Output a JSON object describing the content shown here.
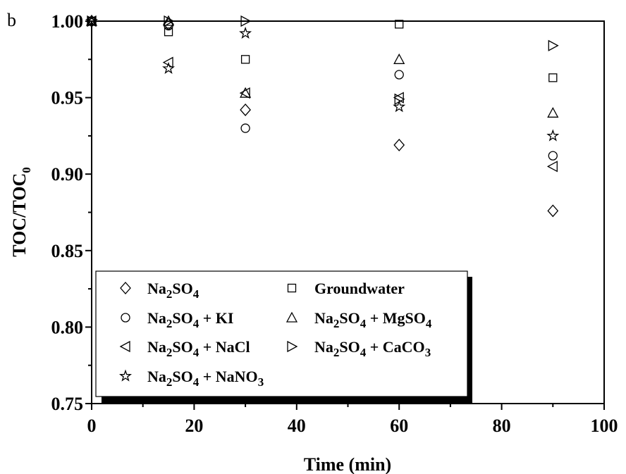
{
  "panel_label": "b",
  "chart_data": {
    "type": "scatter",
    "title": "",
    "xlabel": "Time (min)",
    "ylabel_main": "TOC/TOC",
    "ylabel_sub": "0",
    "xlim": [
      0,
      100
    ],
    "ylim": [
      0.75,
      1.0
    ],
    "xticks": [
      0,
      20,
      40,
      60,
      80,
      100
    ],
    "xtick_labels": [
      "0",
      "20",
      "40",
      "60",
      "80",
      "100"
    ],
    "yticks": [
      0.75,
      0.8,
      0.85,
      0.9,
      0.95,
      1.0
    ],
    "ytick_labels": [
      "0.75",
      "0.80",
      "0.85",
      "0.90",
      "0.95",
      "1.00"
    ],
    "grid": false,
    "legend_position": "lower-left",
    "series": [
      {
        "name": "Na2SO4",
        "legend_parts": [
          [
            "Na",
            ""
          ],
          [
            "2",
            "sub"
          ],
          [
            "SO",
            ""
          ],
          [
            "4",
            "sub"
          ]
        ],
        "marker": "diamond",
        "x": [
          0,
          15,
          30,
          60,
          90
        ],
        "y": [
          1.0,
          0.998,
          0.942,
          0.919,
          0.876
        ]
      },
      {
        "name": "Groundwater",
        "legend_parts": [
          [
            "Groundwater",
            ""
          ]
        ],
        "marker": "square",
        "x": [
          0,
          15,
          30,
          60,
          90
        ],
        "y": [
          1.0,
          0.993,
          0.975,
          0.998,
          0.963
        ]
      },
      {
        "name": "Na2SO4 + KI",
        "legend_parts": [
          [
            "Na",
            ""
          ],
          [
            "2",
            "sub"
          ],
          [
            "SO",
            ""
          ],
          [
            "4",
            "sub"
          ],
          [
            " + KI",
            ""
          ]
        ],
        "marker": "circle",
        "x": [
          0,
          15,
          30,
          60,
          90
        ],
        "y": [
          1.0,
          0.997,
          0.93,
          0.965,
          0.912
        ]
      },
      {
        "name": "Na2SO4 + MgSO4",
        "legend_parts": [
          [
            "Na",
            ""
          ],
          [
            "2",
            "sub"
          ],
          [
            "SO",
            ""
          ],
          [
            "4",
            "sub"
          ],
          [
            " + MgSO",
            ""
          ],
          [
            "4",
            "sub"
          ]
        ],
        "marker": "triangle-up",
        "x": [
          0,
          15,
          30,
          60,
          90
        ],
        "y": [
          1.0,
          1.0,
          0.953,
          0.975,
          0.94
        ]
      },
      {
        "name": "Na2SO4 + NaCl",
        "legend_parts": [
          [
            "Na",
            ""
          ],
          [
            "2",
            "sub"
          ],
          [
            "SO",
            ""
          ],
          [
            "4",
            "sub"
          ],
          [
            " + NaCl",
            ""
          ]
        ],
        "marker": "triangle-left",
        "x": [
          0,
          15,
          30,
          60,
          90
        ],
        "y": [
          1.0,
          0.973,
          0.953,
          0.95,
          0.905
        ]
      },
      {
        "name": "Na2SO4 + CaCO3",
        "legend_parts": [
          [
            "Na",
            ""
          ],
          [
            "2",
            "sub"
          ],
          [
            "SO",
            ""
          ],
          [
            "4",
            "sub"
          ],
          [
            " + CaCO",
            ""
          ],
          [
            "3",
            "sub"
          ]
        ],
        "marker": "triangle-right",
        "x": [
          0,
          15,
          30,
          60,
          90
        ],
        "y": [
          1.0,
          1.0,
          1.0,
          0.949,
          0.984
        ]
      },
      {
        "name": "Na2SO4 + NaNO3",
        "legend_parts": [
          [
            "Na",
            ""
          ],
          [
            "2",
            "sub"
          ],
          [
            "SO",
            ""
          ],
          [
            "4",
            "sub"
          ],
          [
            " + NaNO",
            ""
          ],
          [
            "3",
            "sub"
          ]
        ],
        "marker": "star",
        "x": [
          0,
          15,
          30,
          60,
          90
        ],
        "y": [
          1.0,
          0.969,
          0.992,
          0.944,
          0.925
        ]
      }
    ]
  }
}
